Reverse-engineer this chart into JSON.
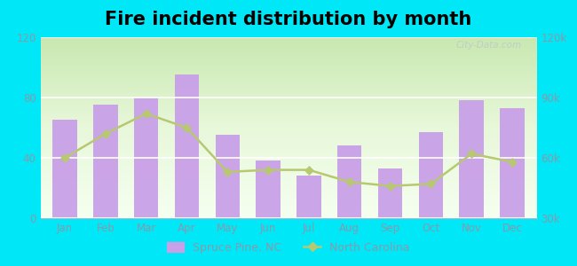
{
  "title": "Fire incident distribution by month",
  "months": [
    "Jan",
    "Feb",
    "Mar",
    "Apr",
    "May",
    "Jun",
    "Jul",
    "Aug",
    "Sep",
    "Oct",
    "Nov",
    "Dec"
  ],
  "bar_values": [
    65,
    75,
    80,
    95,
    55,
    38,
    28,
    48,
    33,
    57,
    78,
    73
  ],
  "line_values": [
    60000,
    72000,
    82000,
    75000,
    53000,
    54000,
    54000,
    48000,
    46000,
    47000,
    62000,
    58000
  ],
  "bar_color": "#c8a0e8",
  "line_color": "#b8c870",
  "line_marker": "D",
  "ylim_left": [
    0,
    120
  ],
  "ylim_right": [
    30000,
    120000
  ],
  "yticks_left": [
    0,
    40,
    80,
    120
  ],
  "yticks_right": [
    30000,
    60000,
    90000,
    120000
  ],
  "bg_outer": "#00e8f8",
  "watermark": "City-Data.com",
  "legend_spruce": "Spruce Pine, NC",
  "legend_nc": "North Carolina",
  "title_fontsize": 15,
  "tick_color": "#8899aa",
  "grid_color": "#ffffff",
  "plot_bg_colors": [
    "#c8e8b0",
    "#e8f5d8",
    "#f5fdf0"
  ],
  "legend_bg": "#00e8f8"
}
